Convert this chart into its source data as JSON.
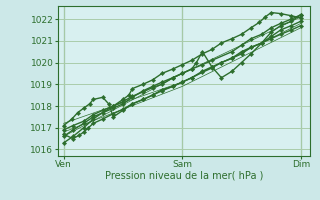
{
  "background_color": "#cce8e8",
  "plot_bg_color": "#d8f0f0",
  "grid_color": "#aaccaa",
  "line_color": "#2d6e2d",
  "marker_color": "#2d6e2d",
  "ylabel_values": [
    1016,
    1017,
    1018,
    1019,
    1020,
    1021,
    1022
  ],
  "ylim": [
    1015.7,
    1022.6
  ],
  "xlim": [
    -0.05,
    2.08
  ],
  "xtick_positions": [
    0,
    1,
    2
  ],
  "xtick_labels": [
    "Ven",
    "Sam",
    "Dim"
  ],
  "xlabel": "Pression niveau de la mer( hPa )",
  "series": [
    {
      "x": [
        0.0,
        0.08,
        0.17,
        0.25,
        0.42,
        0.5,
        0.58,
        0.67,
        0.75,
        0.83,
        0.92,
        1.0,
        1.08,
        1.17,
        1.25,
        1.42,
        1.5,
        1.58,
        1.67,
        1.75,
        1.83,
        1.92,
        2.0
      ],
      "y": [
        1016.6,
        1016.9,
        1017.2,
        1017.5,
        1017.9,
        1018.1,
        1018.4,
        1018.7,
        1018.9,
        1019.1,
        1019.3,
        1019.5,
        1019.7,
        1019.9,
        1020.1,
        1020.5,
        1020.8,
        1021.1,
        1021.3,
        1021.6,
        1021.8,
        1022.0,
        1022.2
      ],
      "with_markers": true,
      "linewidth": 1.0
    },
    {
      "x": [
        0.0,
        0.08,
        0.17,
        0.25,
        0.33,
        0.42,
        0.5,
        0.58,
        0.67,
        0.75,
        0.83,
        0.92,
        1.0,
        1.08,
        1.12,
        1.17,
        1.25,
        1.33,
        1.42,
        1.5,
        1.58,
        1.67,
        1.75,
        1.83,
        1.92,
        2.0
      ],
      "y": [
        1016.3,
        1016.6,
        1017.0,
        1017.4,
        1017.7,
        1018.0,
        1018.2,
        1018.45,
        1018.65,
        1018.85,
        1019.0,
        1019.3,
        1019.5,
        1019.7,
        1020.0,
        1020.5,
        1019.8,
        1019.3,
        1019.6,
        1020.0,
        1020.4,
        1020.9,
        1021.4,
        1021.7,
        1021.9,
        1022.2
      ],
      "with_markers": true,
      "linewidth": 1.0
    },
    {
      "x": [
        0.0,
        0.08,
        0.17,
        0.25,
        0.33,
        0.42,
        0.5,
        0.55,
        0.58,
        0.67,
        0.75,
        0.83,
        0.92,
        1.0,
        1.08,
        1.17,
        1.25,
        1.33,
        1.42,
        1.5,
        1.58,
        1.65,
        1.7,
        1.75,
        1.83,
        1.92,
        2.0
      ],
      "y": [
        1016.9,
        1017.1,
        1017.3,
        1017.6,
        1017.8,
        1018.0,
        1018.3,
        1018.5,
        1018.8,
        1019.0,
        1019.2,
        1019.5,
        1019.7,
        1019.9,
        1020.1,
        1020.4,
        1020.6,
        1020.9,
        1021.1,
        1021.3,
        1021.6,
        1021.85,
        1022.1,
        1022.3,
        1022.25,
        1022.15,
        1022.05
      ],
      "with_markers": true,
      "linewidth": 1.0
    },
    {
      "x": [
        0.0,
        0.07,
        0.12,
        0.17,
        0.22,
        0.25,
        0.33,
        0.38,
        0.42,
        0.5,
        0.58,
        0.67,
        0.75,
        0.83,
        0.92,
        1.0,
        1.08,
        1.17,
        1.25,
        1.33,
        1.42,
        1.5,
        1.58,
        1.67,
        1.75,
        1.83,
        1.92,
        2.0
      ],
      "y": [
        1017.1,
        1017.4,
        1017.7,
        1017.9,
        1018.1,
        1018.3,
        1018.4,
        1018.1,
        1017.5,
        1017.8,
        1018.1,
        1018.3,
        1018.5,
        1018.75,
        1018.9,
        1019.1,
        1019.3,
        1019.6,
        1019.8,
        1020.0,
        1020.2,
        1020.4,
        1020.7,
        1020.9,
        1021.2,
        1021.5,
        1021.7,
        1021.9
      ],
      "with_markers": true,
      "linewidth": 1.0
    },
    {
      "x": [
        0.0,
        0.08,
        0.13,
        0.17,
        0.21,
        0.25,
        0.33,
        0.42,
        0.5,
        0.58,
        0.67,
        0.75,
        0.83,
        0.92,
        1.0,
        1.08,
        1.17,
        1.25,
        1.33,
        1.42,
        1.5,
        1.58,
        1.67,
        1.75,
        1.83,
        1.92,
        2.0
      ],
      "y": [
        1016.7,
        1016.5,
        1016.65,
        1016.8,
        1017.0,
        1017.2,
        1017.4,
        1017.65,
        1017.85,
        1018.1,
        1018.3,
        1018.5,
        1018.7,
        1018.9,
        1019.1,
        1019.3,
        1019.55,
        1019.75,
        1020.0,
        1020.2,
        1020.5,
        1020.7,
        1020.9,
        1021.1,
        1021.3,
        1021.5,
        1021.7
      ],
      "with_markers": true,
      "linewidth": 1.0
    }
  ],
  "thin_lines": [
    {
      "x": [
        0.0,
        1.0,
        2.0
      ],
      "y": [
        1016.6,
        1019.5,
        1022.1
      ],
      "linewidth": 0.5
    },
    {
      "x": [
        0.0,
        1.0,
        2.0
      ],
      "y": [
        1016.8,
        1018.9,
        1021.6
      ],
      "linewidth": 0.5
    },
    {
      "x": [
        0.0,
        1.0,
        2.0
      ],
      "y": [
        1017.2,
        1019.1,
        1021.8
      ],
      "linewidth": 0.5
    }
  ]
}
